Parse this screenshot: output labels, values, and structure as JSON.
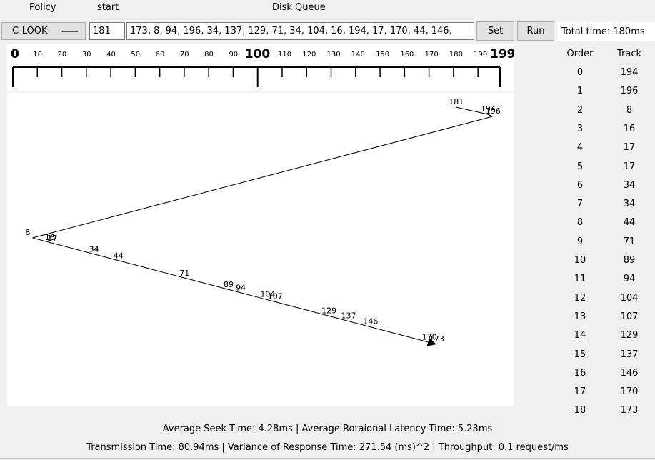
{
  "header": {
    "policy_label": "Policy",
    "start_label": "start",
    "queue_label": "Disk Queue"
  },
  "controls": {
    "policy_value": "C-LOOK",
    "start_value": "181",
    "queue_value": "173, 8, 94, 196, 34, 137, 129, 71, 34, 104, 16, 194, 17, 170, 44, 146,",
    "set_label": "Set",
    "run_label": "Run",
    "total_time": "Total time: 180ms"
  },
  "ruler": {
    "ticks": [
      {
        "label": "0",
        "major": true
      },
      {
        "label": "10"
      },
      {
        "label": "20"
      },
      {
        "label": "30"
      },
      {
        "label": "40"
      },
      {
        "label": "50"
      },
      {
        "label": "60"
      },
      {
        "label": "70"
      },
      {
        "label": "80"
      },
      {
        "label": "90"
      },
      {
        "label": "100",
        "major": true
      },
      {
        "label": "110"
      },
      {
        "label": "120"
      },
      {
        "label": "130"
      },
      {
        "label": "140"
      },
      {
        "label": "150"
      },
      {
        "label": "160"
      },
      {
        "label": "170"
      },
      {
        "label": "180"
      },
      {
        "label": "190"
      },
      {
        "label": "199",
        "major": true
      }
    ]
  },
  "path": [
    181,
    194,
    196,
    8,
    16,
    17,
    17,
    34,
    34,
    44,
    71,
    89,
    94,
    104,
    107,
    129,
    137,
    146,
    170,
    173
  ],
  "table": {
    "col_order": "Order",
    "col_track": "Track",
    "rows": [
      {
        "order": "0",
        "track": "194"
      },
      {
        "order": "1",
        "track": "196"
      },
      {
        "order": "2",
        "track": "8"
      },
      {
        "order": "3",
        "track": "16"
      },
      {
        "order": "4",
        "track": "17"
      },
      {
        "order": "5",
        "track": "17"
      },
      {
        "order": "6",
        "track": "34"
      },
      {
        "order": "7",
        "track": "34"
      },
      {
        "order": "8",
        "track": "44"
      },
      {
        "order": "9",
        "track": "71"
      },
      {
        "order": "10",
        "track": "89"
      },
      {
        "order": "11",
        "track": "94"
      },
      {
        "order": "12",
        "track": "104"
      },
      {
        "order": "13",
        "track": "107"
      },
      {
        "order": "14",
        "track": "129"
      },
      {
        "order": "15",
        "track": "137"
      },
      {
        "order": "16",
        "track": "146"
      },
      {
        "order": "17",
        "track": "170"
      },
      {
        "order": "18",
        "track": "173"
      }
    ]
  },
  "stats": {
    "line1": "Average Seek Time: 4.28ms    |    Average Rotaional Latency Time: 5.23ms",
    "line2": "Transmission Time: 80.94ms | Variance of Response Time: 271.54 (ms)^2 | Throughput: 0.1 request/ms"
  }
}
